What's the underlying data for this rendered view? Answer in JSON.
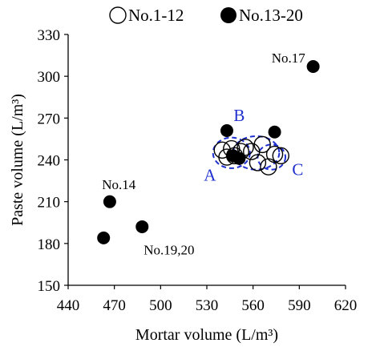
{
  "chart_data": {
    "type": "scatter",
    "xlabel": "Mortar volume (L/m³)",
    "ylabel": "Paste volume  (L/m³)",
    "xlim": [
      440,
      620
    ],
    "ylim": [
      150,
      330
    ],
    "xticks": [
      440,
      470,
      500,
      530,
      560,
      590,
      620
    ],
    "yticks": [
      150,
      180,
      210,
      240,
      270,
      300,
      330
    ],
    "grid": false,
    "legend_position": "top",
    "series": [
      {
        "name": "No.1-12",
        "marker": "open-circle",
        "color": "#000000",
        "points": [
          {
            "x": 540,
            "y": 247
          },
          {
            "x": 543,
            "y": 242
          },
          {
            "x": 546,
            "y": 248
          },
          {
            "x": 548,
            "y": 243
          },
          {
            "x": 552,
            "y": 246
          },
          {
            "x": 555,
            "y": 249
          },
          {
            "x": 559,
            "y": 246
          },
          {
            "x": 563,
            "y": 238
          },
          {
            "x": 566,
            "y": 251
          },
          {
            "x": 570,
            "y": 235
          },
          {
            "x": 574,
            "y": 244
          },
          {
            "x": 578,
            "y": 243
          }
        ]
      },
      {
        "name": "No.13-20",
        "marker": "filled-circle",
        "color": "#000000",
        "points": [
          {
            "x": 543,
            "y": 261
          },
          {
            "x": 574,
            "y": 260
          },
          {
            "x": 599,
            "y": 307
          },
          {
            "x": 467,
            "y": 210
          },
          {
            "x": 463,
            "y": 184
          },
          {
            "x": 488,
            "y": 192
          },
          {
            "x": 547,
            "y": 243
          },
          {
            "x": 551,
            "y": 241
          }
        ]
      }
    ],
    "annotations": [
      {
        "text": "No.17",
        "x": 572,
        "y": 310
      },
      {
        "text": "No.14",
        "x": 462,
        "y": 219
      },
      {
        "text": "No.19,20",
        "x": 489,
        "y": 172
      }
    ],
    "groups": [
      {
        "label": "A",
        "cx": 546,
        "cy": 245,
        "rx": 12,
        "ry": 11,
        "label_x": 532,
        "label_y": 225
      },
      {
        "label": "B",
        "cx": 562,
        "cy": 245,
        "rx": 15,
        "ry": 12,
        "label_x": 551,
        "label_y": 268
      },
      {
        "label": "C",
        "cx": 572,
        "cy": 242,
        "rx": 9,
        "ry": 9,
        "label_x": 589,
        "label_y": 229
      }
    ],
    "group_color": "#1f2fd0"
  }
}
